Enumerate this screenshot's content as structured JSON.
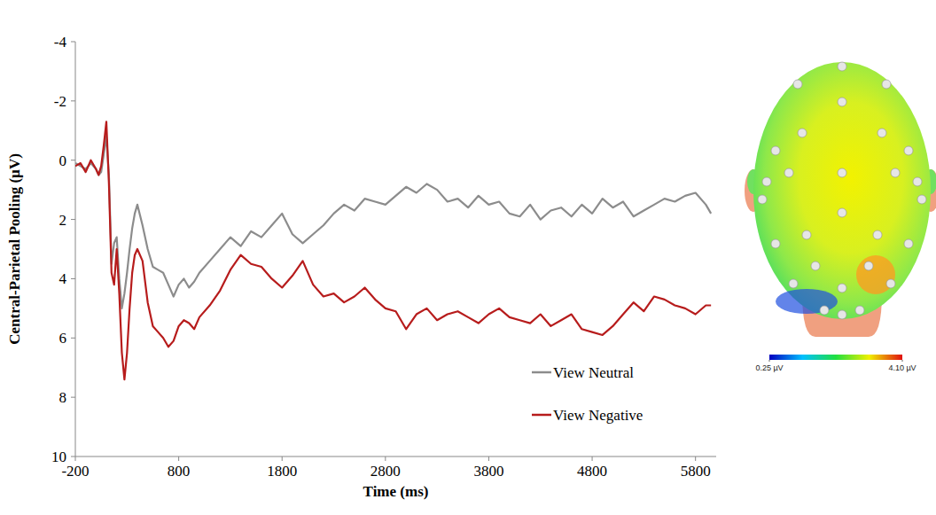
{
  "chart_data": {
    "type": "line",
    "x_label": "Time (ms)",
    "y_label": "Central-Parietal Pooling (µV)",
    "x": [
      -200,
      -150,
      -100,
      -50,
      0,
      25,
      50,
      75,
      100,
      125,
      150,
      175,
      200,
      225,
      250,
      275,
      300,
      325,
      350,
      375,
      400,
      450,
      500,
      550,
      600,
      650,
      700,
      750,
      800,
      850,
      900,
      950,
      1000,
      1100,
      1200,
      1300,
      1400,
      1500,
      1600,
      1700,
      1800,
      1900,
      2000,
      2100,
      2200,
      2300,
      2400,
      2500,
      2600,
      2700,
      2800,
      2900,
      3000,
      3100,
      3200,
      3300,
      3400,
      3500,
      3600,
      3700,
      3800,
      3900,
      4000,
      4100,
      4200,
      4300,
      4400,
      4500,
      4600,
      4700,
      4800,
      4900,
      5000,
      5100,
      5200,
      5300,
      5400,
      5500,
      5600,
      5700,
      5800,
      5900,
      5950
    ],
    "series": [
      {
        "name": "View Neutral",
        "color": "#8c8c8c",
        "values": [
          0.1,
          0.2,
          0.3,
          0.1,
          0.3,
          0.5,
          0.4,
          -0.2,
          -0.8,
          0.5,
          3.5,
          2.8,
          2.6,
          4.0,
          5.0,
          4.5,
          3.8,
          3.0,
          2.3,
          1.8,
          1.5,
          2.2,
          3.0,
          3.6,
          3.7,
          3.8,
          4.2,
          4.6,
          4.2,
          4.0,
          4.3,
          4.1,
          3.8,
          3.4,
          3.0,
          2.6,
          2.9,
          2.4,
          2.6,
          2.2,
          1.8,
          2.5,
          2.8,
          2.5,
          2.2,
          1.8,
          1.5,
          1.7,
          1.3,
          1.4,
          1.5,
          1.2,
          0.9,
          1.1,
          0.8,
          1.0,
          1.4,
          1.3,
          1.6,
          1.2,
          1.5,
          1.4,
          1.8,
          1.9,
          1.5,
          2.0,
          1.7,
          1.6,
          1.9,
          1.5,
          1.8,
          1.3,
          1.6,
          1.4,
          1.9,
          1.7,
          1.5,
          1.3,
          1.4,
          1.2,
          1.1,
          1.5,
          1.8
        ]
      },
      {
        "name": "View Negative",
        "color": "#b71c1c",
        "values": [
          0.2,
          0.1,
          0.4,
          0.0,
          0.3,
          0.5,
          0.2,
          -0.5,
          -1.3,
          0.8,
          3.8,
          4.2,
          3.0,
          4.5,
          6.5,
          7.4,
          6.5,
          5.0,
          3.8,
          3.2,
          3.0,
          3.4,
          4.8,
          5.6,
          5.8,
          6.0,
          6.3,
          6.1,
          5.6,
          5.4,
          5.5,
          5.7,
          5.3,
          4.9,
          4.4,
          3.7,
          3.2,
          3.5,
          3.6,
          4.0,
          4.3,
          3.9,
          3.4,
          4.2,
          4.6,
          4.5,
          4.8,
          4.6,
          4.3,
          4.7,
          5.0,
          5.1,
          5.7,
          5.2,
          5.0,
          5.4,
          5.2,
          5.1,
          5.3,
          5.5,
          5.2,
          5.0,
          5.3,
          5.4,
          5.5,
          5.2,
          5.6,
          5.4,
          5.2,
          5.7,
          5.8,
          5.9,
          5.6,
          5.2,
          4.8,
          5.1,
          4.6,
          4.7,
          4.9,
          5.0,
          5.2,
          4.9,
          4.9
        ]
      }
    ],
    "xlim": [
      -200,
      6000
    ],
    "xticks": [
      -200,
      800,
      1800,
      2800,
      3800,
      4800,
      5800
    ],
    "ylim": [
      -4,
      10
    ],
    "yticks": [
      -4,
      -2,
      0,
      2,
      4,
      6,
      8,
      10
    ],
    "legend": "lower right",
    "grid": false,
    "color_range": [
      0.25,
      4.1
    ],
    "color_ticks": [
      {
        "value": 0.25,
        "label": "0.25 µV"
      },
      {
        "value": 4.1,
        "label": "4.10 µV"
      }
    ]
  }
}
